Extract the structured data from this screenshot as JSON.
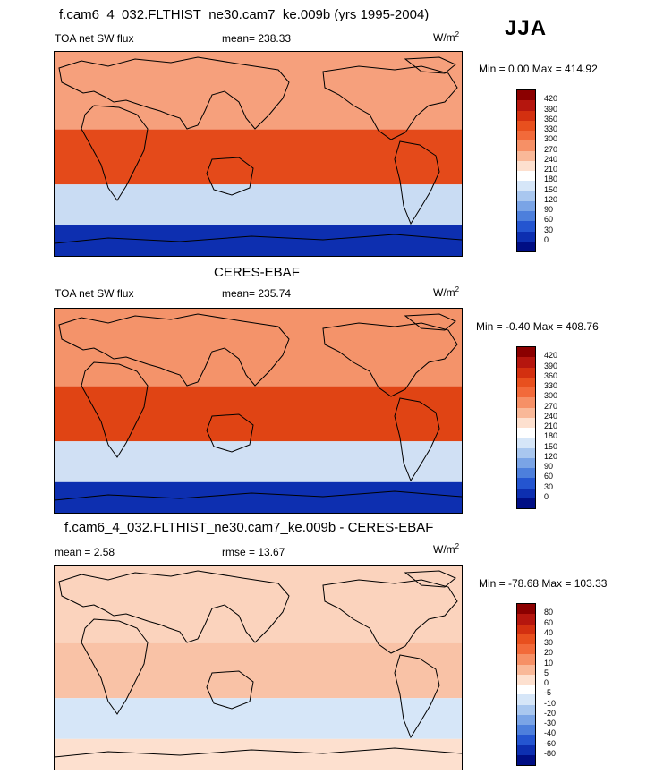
{
  "season": "JJA",
  "panels": [
    {
      "id": "model",
      "title": "f.cam6_4_032.FLTHIST_ne30.cam7_ke.009b (yrs 1995-2004)",
      "left_label": "TOA net SW flux",
      "center_label": "mean= 238.33",
      "units_prefix": "W/m",
      "units_sup": "2",
      "minmax": "Min =   0.00 Max = 414.92",
      "levels": [
        "420",
        "390",
        "360",
        "330",
        "300",
        "270",
        "240",
        "210",
        "180",
        "150",
        "120",
        "90",
        "60",
        "30",
        "0"
      ],
      "colors": [
        "#8b0000",
        "#b5160e",
        "#d33010",
        "#e8501e",
        "#f26a3a",
        "#f69066",
        "#f9b898",
        "#fde0cf",
        "#ffffff",
        "#d6e6f8",
        "#a9c7ef",
        "#7aa4e6",
        "#4d7fdc",
        "#2455d0",
        "#0d2fb0",
        "#000e84"
      ],
      "fields": {
        "north": "#f6a07c",
        "trop": "#e44a1a",
        "south": "#c9dcf3",
        "antarctic": "#0d2fb0"
      }
    },
    {
      "id": "obs",
      "title": "CERES-EBAF",
      "left_label": "TOA net SW flux",
      "center_label": "mean= 235.74",
      "units_prefix": "W/m",
      "units_sup": "2",
      "minmax": "Min =  -0.40 Max = 408.76",
      "levels": [
        "420",
        "390",
        "360",
        "330",
        "300",
        "270",
        "240",
        "210",
        "180",
        "150",
        "120",
        "90",
        "60",
        "30",
        "0"
      ],
      "colors": [
        "#8b0000",
        "#b5160e",
        "#d33010",
        "#e8501e",
        "#f26a3a",
        "#f69066",
        "#f9b898",
        "#fde0cf",
        "#ffffff",
        "#d6e6f8",
        "#a9c7ef",
        "#7aa4e6",
        "#4d7fdc",
        "#2455d0",
        "#0d2fb0",
        "#000e84"
      ],
      "fields": {
        "north": "#f4936a",
        "trop": "#e04414",
        "south": "#d0e0f4",
        "antarctic": "#0d2fb0"
      }
    },
    {
      "id": "diff",
      "title": "f.cam6_4_032.FLTHIST_ne30.cam7_ke.009b - CERES-EBAF",
      "left_label": "mean =   2.58",
      "center_label": "rmse =  13.67",
      "units_prefix": "W/m",
      "units_sup": "2",
      "minmax": "Min = -78.68 Max = 103.33",
      "levels": [
        "80",
        "60",
        "40",
        "30",
        "20",
        "10",
        "5",
        "0",
        "-5",
        "-10",
        "-20",
        "-30",
        "-40",
        "-60",
        "-80"
      ],
      "colors": [
        "#8b0000",
        "#b5160e",
        "#d33010",
        "#e8501e",
        "#f26a3a",
        "#f69066",
        "#f9b898",
        "#fde0cf",
        "#ffffff",
        "#d6e6f8",
        "#a9c7ef",
        "#7aa4e6",
        "#4d7fdc",
        "#2455d0",
        "#0d2fb0",
        "#000e84"
      ],
      "fields": {
        "north": "#fbd3bd",
        "trop": "#f9c2a6",
        "south": "#d6e6f8",
        "antarctic": "#fde0cf"
      }
    }
  ]
}
